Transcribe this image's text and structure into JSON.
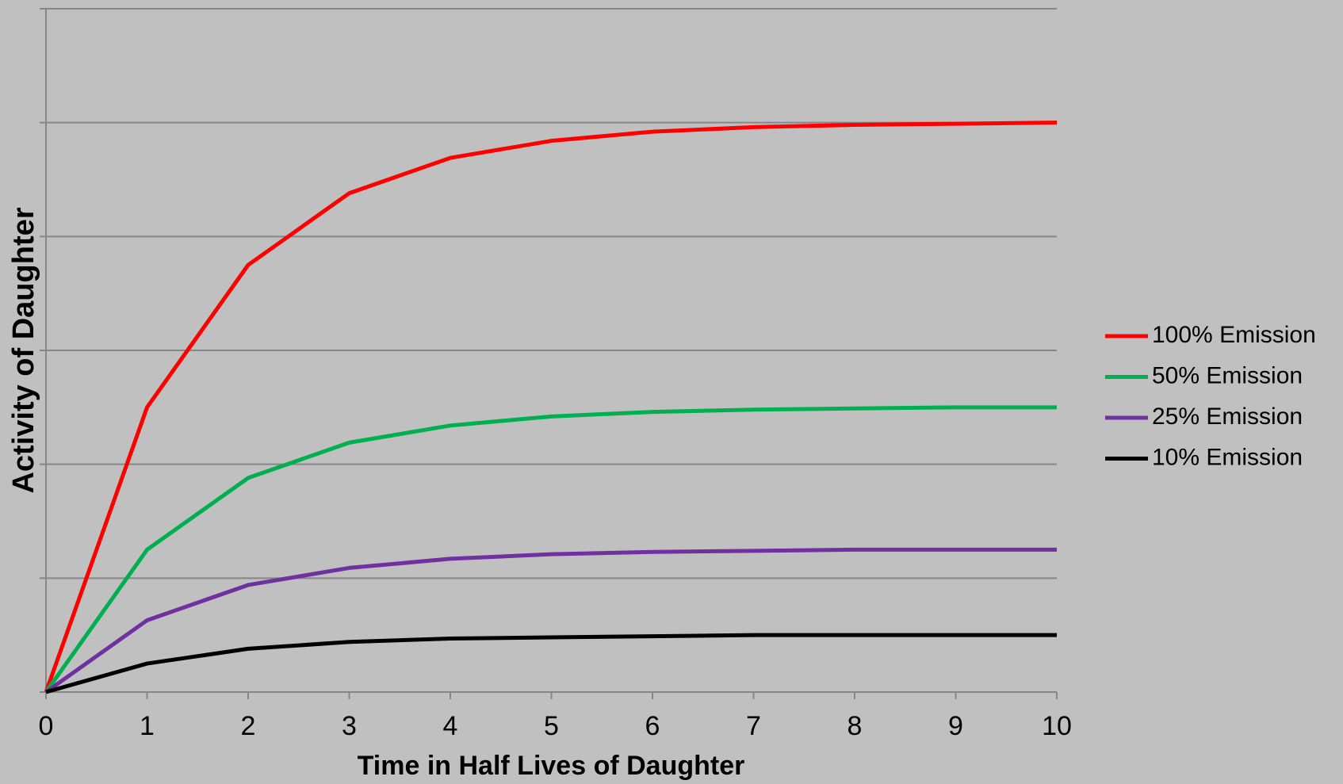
{
  "chart_data": {
    "type": "line",
    "x_label": "Time in Half Lives of Daughter",
    "y_label": "Activity of Daughter",
    "x": [
      0,
      1,
      2,
      3,
      4,
      5,
      6,
      7,
      8,
      9,
      10
    ],
    "xlim": [
      0,
      10
    ],
    "xticks": [
      0,
      1,
      2,
      3,
      4,
      5,
      6,
      7,
      8,
      9,
      10
    ],
    "ylim": [
      0,
      6
    ],
    "yticks": [
      0,
      1,
      2,
      3,
      4,
      5,
      6
    ],
    "grid": true,
    "legend": "right",
    "series": [
      {
        "name": "100% Emission",
        "color": "#ff0000",
        "values": [
          0,
          2.5,
          3.75,
          4.38,
          4.69,
          4.84,
          4.92,
          4.96,
          4.98,
          4.99,
          5.0
        ]
      },
      {
        "name": "50% Emission",
        "color": "#00b050",
        "values": [
          0,
          1.25,
          1.88,
          2.19,
          2.34,
          2.42,
          2.46,
          2.48,
          2.49,
          2.5,
          2.5
        ]
      },
      {
        "name": "25% Emission",
        "color": "#7030a0",
        "values": [
          0,
          0.63,
          0.94,
          1.09,
          1.17,
          1.21,
          1.23,
          1.24,
          1.25,
          1.25,
          1.25
        ]
      },
      {
        "name": "10% Emission",
        "color": "#000000",
        "values": [
          0,
          0.25,
          0.38,
          0.44,
          0.47,
          0.48,
          0.49,
          0.5,
          0.5,
          0.5,
          0.5
        ]
      }
    ]
  }
}
